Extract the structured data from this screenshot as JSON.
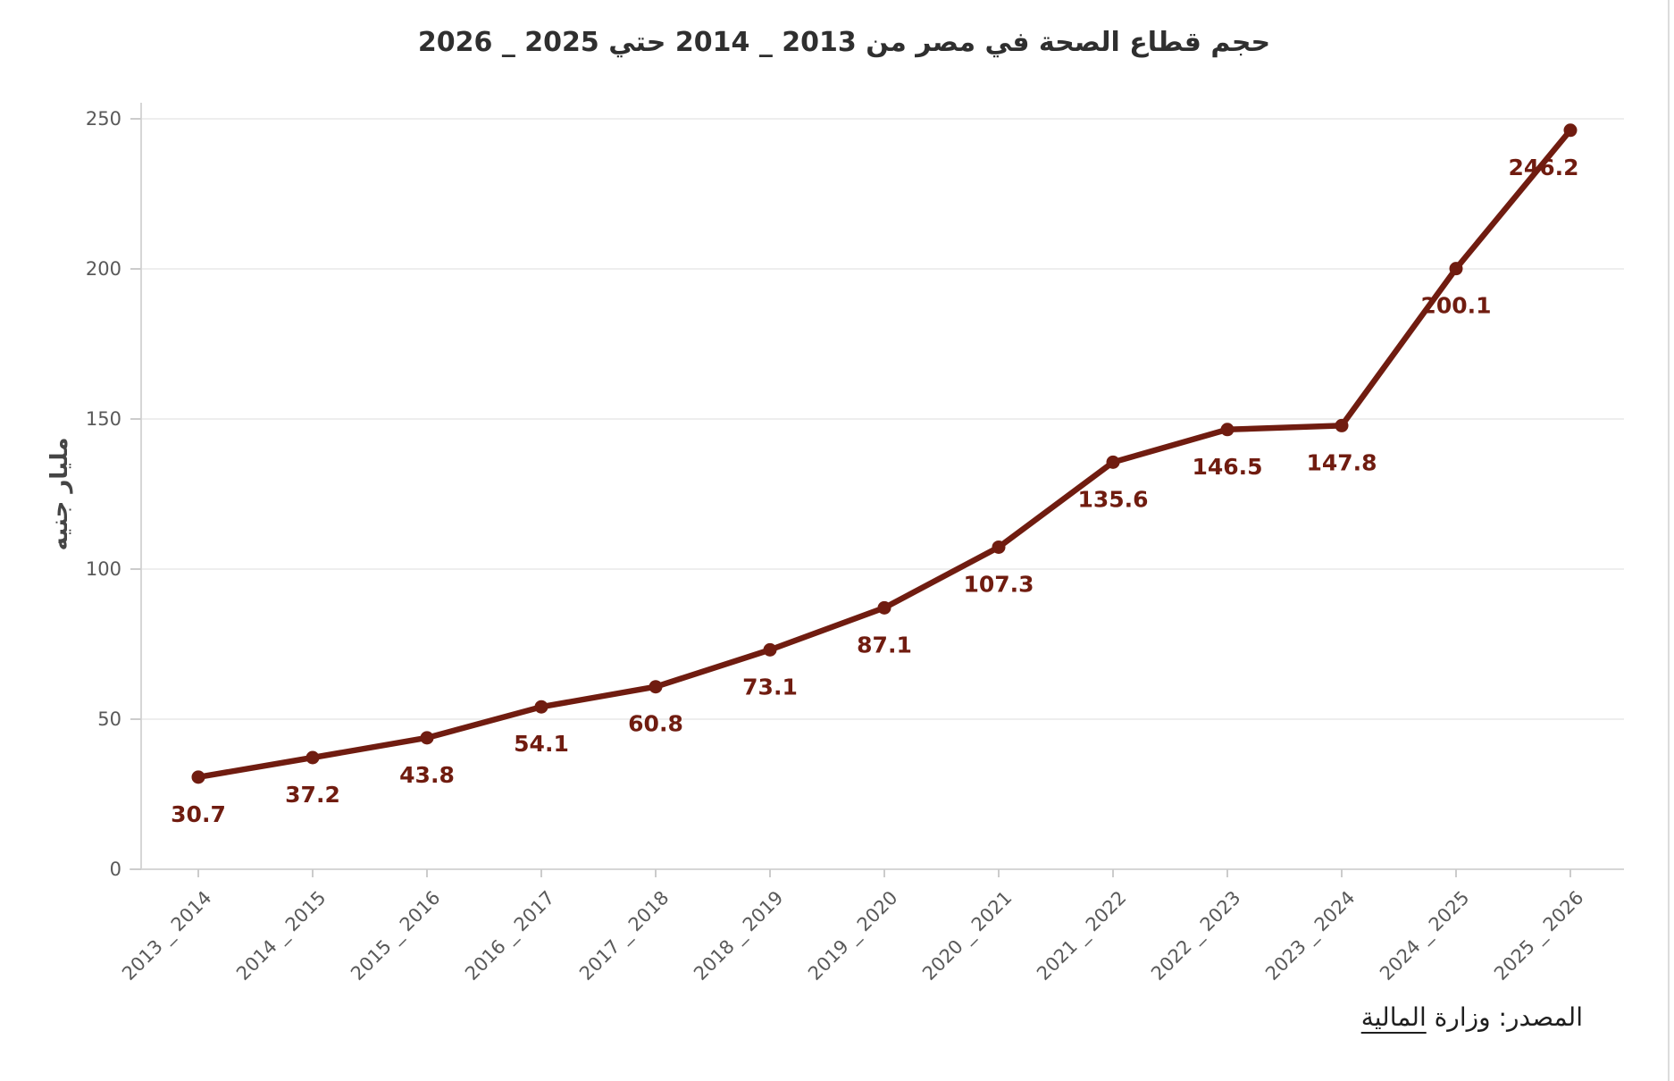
{
  "title": "حجم قطاع الصحة في مصر من 2013 _ 2014 حتي 2025 _ 2026",
  "source": {
    "prefix": "المصدر: وزارة",
    "linked": "المالية"
  },
  "chart_data": {
    "type": "line",
    "title": "حجم قطاع الصحة في مصر من 2013 _ 2014 حتي 2025 _ 2026",
    "categories": [
      "2013 _ 2014",
      "2014 _ 2015",
      "2015 _ 2016",
      "2016 _ 2017",
      "2017 _ 2018",
      "2018 _ 2019",
      "2019 _ 2020",
      "2020 _ 2021",
      "2021 _ 2022",
      "2022 _ 2023",
      "2023 _ 2024",
      "2024 _ 2025",
      "2025 _ 2026"
    ],
    "values": [
      30.7,
      37.2,
      43.8,
      54.1,
      60.8,
      73.1,
      87.1,
      107.3,
      135.6,
      146.5,
      147.8,
      200.1,
      246.2
    ],
    "xlabel": "",
    "ylabel": "مليار جنيه",
    "ylim": [
      0,
      250
    ],
    "yticks": [
      0,
      50,
      100,
      150,
      200,
      250
    ],
    "grid": "horizontal",
    "legend": "none",
    "marker": "circle",
    "colors": {
      "line": "#701c10",
      "data_label": "#701c10",
      "tick_label": "#595959",
      "gridline": "#eeeeee",
      "spine": "#d6d6d6",
      "tick_mark": "#cccccc"
    }
  }
}
